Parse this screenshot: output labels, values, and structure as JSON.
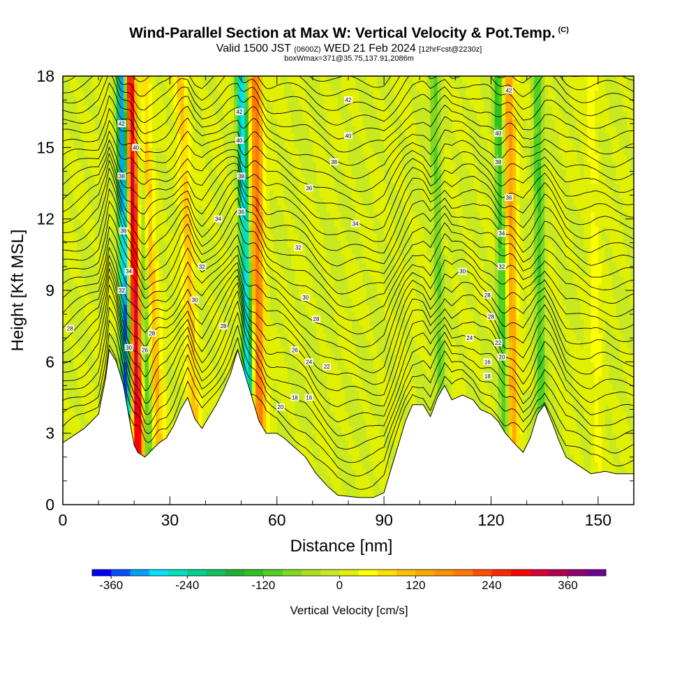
{
  "header": {
    "title": "Wind-Parallel Section at Max W: Vertical Velocity & Pot.Temp.",
    "copyright": "(C)",
    "valid_prefix": "Valid 1500 JST",
    "valid_utc": "(0600Z)",
    "valid_date": "WED 21 Feb 2024",
    "forecast_note": "[12hrFcst@2230z]",
    "box_info": "boxWmax=371@35.75,137.91,2086m"
  },
  "chart_data": {
    "type": "heatmap",
    "xlabel": "Distance [nm]",
    "ylabel": "Height [Kft MSL]",
    "xlim": [
      0,
      160
    ],
    "ylim": [
      0,
      18
    ],
    "x_ticks": [
      0,
      30,
      60,
      90,
      120,
      150
    ],
    "y_ticks": [
      0,
      3,
      6,
      9,
      12,
      15,
      18
    ],
    "colorbar": {
      "label": "Vertical Velocity [cm/s]",
      "tick_labels": [
        "-360",
        "-240",
        "-120",
        "0",
        "120",
        "240",
        "360"
      ],
      "tick_values": [
        -360,
        -240,
        -120,
        0,
        120,
        240,
        360
      ],
      "bins": [
        -390,
        -360,
        -330,
        -300,
        -270,
        -240,
        -210,
        -180,
        -150,
        -120,
        -90,
        -60,
        -30,
        0,
        30,
        60,
        90,
        120,
        150,
        180,
        210,
        240,
        270,
        300,
        330,
        360,
        390,
        420
      ],
      "colors": [
        "#0000ff",
        "#0050ff",
        "#00a0ff",
        "#00e0ff",
        "#00e0c0",
        "#00d090",
        "#10c060",
        "#20b030",
        "#30c020",
        "#50d020",
        "#80d820",
        "#a8e020",
        "#c8e820",
        "#e0f000",
        "#ffff00",
        "#ffe000",
        "#ffc000",
        "#ffa800",
        "#ff9000",
        "#ff7800",
        "#ff5000",
        "#ff2800",
        "#ff0000",
        "#d80030",
        "#b00050",
        "#900070",
        "#700090"
      ]
    },
    "terrain_height_kft": [
      {
        "x": 0,
        "y": 2.6
      },
      {
        "x": 3,
        "y": 2.9
      },
      {
        "x": 6,
        "y": 3.2
      },
      {
        "x": 8,
        "y": 3.5
      },
      {
        "x": 10,
        "y": 3.8
      },
      {
        "x": 12,
        "y": 5.3
      },
      {
        "x": 13,
        "y": 6.5
      },
      {
        "x": 15,
        "y": 6.0
      },
      {
        "x": 17,
        "y": 5.0
      },
      {
        "x": 19,
        "y": 3.3
      },
      {
        "x": 20,
        "y": 2.5
      },
      {
        "x": 21,
        "y": 2.2
      },
      {
        "x": 23,
        "y": 2.0
      },
      {
        "x": 25,
        "y": 2.3
      },
      {
        "x": 27,
        "y": 2.6
      },
      {
        "x": 29,
        "y": 2.8
      },
      {
        "x": 31,
        "y": 3.3
      },
      {
        "x": 33,
        "y": 4.0
      },
      {
        "x": 35,
        "y": 4.5
      },
      {
        "x": 37,
        "y": 3.6
      },
      {
        "x": 39,
        "y": 3.2
      },
      {
        "x": 41,
        "y": 3.7
      },
      {
        "x": 43,
        "y": 4.2
      },
      {
        "x": 45,
        "y": 4.8
      },
      {
        "x": 47,
        "y": 5.5
      },
      {
        "x": 49,
        "y": 6.5
      },
      {
        "x": 51,
        "y": 5.5
      },
      {
        "x": 53,
        "y": 4.5
      },
      {
        "x": 55,
        "y": 3.5
      },
      {
        "x": 57,
        "y": 3.0
      },
      {
        "x": 60,
        "y": 3.0
      },
      {
        "x": 62,
        "y": 2.8
      },
      {
        "x": 65,
        "y": 2.4
      },
      {
        "x": 68,
        "y": 2.0
      },
      {
        "x": 71,
        "y": 1.3
      },
      {
        "x": 74,
        "y": 0.8
      },
      {
        "x": 77,
        "y": 0.4
      },
      {
        "x": 83,
        "y": 0.3
      },
      {
        "x": 87,
        "y": 0.3
      },
      {
        "x": 90,
        "y": 0.5
      },
      {
        "x": 92,
        "y": 1.5
      },
      {
        "x": 94,
        "y": 2.5
      },
      {
        "x": 96,
        "y": 3.5
      },
      {
        "x": 98,
        "y": 4.2
      },
      {
        "x": 101,
        "y": 4.2
      },
      {
        "x": 103,
        "y": 3.7
      },
      {
        "x": 105,
        "y": 4.5
      },
      {
        "x": 107,
        "y": 5.0
      },
      {
        "x": 109,
        "y": 4.4
      },
      {
        "x": 112,
        "y": 4.6
      },
      {
        "x": 115,
        "y": 4.4
      },
      {
        "x": 117,
        "y": 4.0
      },
      {
        "x": 120,
        "y": 3.8
      },
      {
        "x": 122,
        "y": 3.5
      },
      {
        "x": 124,
        "y": 3.0
      },
      {
        "x": 127,
        "y": 2.5
      },
      {
        "x": 129,
        "y": 2.2
      },
      {
        "x": 131,
        "y": 2.8
      },
      {
        "x": 133,
        "y": 3.8
      },
      {
        "x": 135,
        "y": 4.2
      },
      {
        "x": 137,
        "y": 3.5
      },
      {
        "x": 139,
        "y": 2.7
      },
      {
        "x": 141,
        "y": 2.0
      },
      {
        "x": 145,
        "y": 1.6
      },
      {
        "x": 148,
        "y": 1.3
      },
      {
        "x": 152,
        "y": 1.4
      },
      {
        "x": 155,
        "y": 1.3
      },
      {
        "x": 160,
        "y": 1.3
      }
    ],
    "updraft_bands": [
      {
        "x_base": 21,
        "x_top": 19,
        "y_base": 2.5,
        "w_peak": 330
      },
      {
        "x_base": 27,
        "x_top": 22,
        "y_base": 2.2,
        "w_peak": 120
      },
      {
        "x_base": 37,
        "x_top": 33,
        "y_base": 3.5,
        "w_peak": 100
      },
      {
        "x_base": 55,
        "x_top": 54,
        "y_base": 3.5,
        "w_peak": 200
      },
      {
        "x_base": 126,
        "x_top": 125,
        "y_base": 3.0,
        "w_peak": 150
      },
      {
        "x_base": 150,
        "x_top": 148,
        "y_base": 1.5,
        "w_peak": 40
      }
    ],
    "downdraft_bands": [
      {
        "x_base": 18,
        "x_top": 16.5,
        "y_base": 3.0,
        "w_peak": -360
      },
      {
        "x_base": 24,
        "x_top": 21,
        "y_base": 2.3,
        "w_peak": -150
      },
      {
        "x_base": 52,
        "x_top": 50,
        "y_base": 5.0,
        "w_peak": -300
      },
      {
        "x_base": 106,
        "x_top": 104,
        "y_base": 4.5,
        "w_peak": -90
      },
      {
        "x_base": 124,
        "x_top": 122,
        "y_base": 3.5,
        "w_peak": -150
      },
      {
        "x_base": 134,
        "x_top": 133,
        "y_base": 4.0,
        "w_peak": -120
      }
    ],
    "theta_contour_labels": [
      {
        "text": "28",
        "x": 2,
        "y": 7.4
      },
      {
        "text": "42",
        "x": 16.5,
        "y": 16.0
      },
      {
        "text": "40",
        "x": 20.5,
        "y": 15.0
      },
      {
        "text": "38",
        "x": 16.5,
        "y": 13.8
      },
      {
        "text": "36",
        "x": 17,
        "y": 11.5
      },
      {
        "text": "34",
        "x": 18.5,
        "y": 9.8
      },
      {
        "text": "32",
        "x": 16.5,
        "y": 9.0
      },
      {
        "text": "30",
        "x": 18.5,
        "y": 6.6
      },
      {
        "text": "28",
        "x": 25,
        "y": 7.2
      },
      {
        "text": "26",
        "x": 23,
        "y": 6.5
      },
      {
        "text": "34",
        "x": 43.5,
        "y": 12.0
      },
      {
        "text": "32",
        "x": 39,
        "y": 10.0
      },
      {
        "text": "30",
        "x": 37,
        "y": 8.6
      },
      {
        "text": "28",
        "x": 45,
        "y": 7.5
      },
      {
        "text": "42",
        "x": 49.5,
        "y": 16.5
      },
      {
        "text": "40",
        "x": 49.5,
        "y": 15.3
      },
      {
        "text": "38",
        "x": 50,
        "y": 13.8
      },
      {
        "text": "36",
        "x": 50,
        "y": 12.3
      },
      {
        "text": "42",
        "x": 80,
        "y": 17.0
      },
      {
        "text": "40",
        "x": 80,
        "y": 15.5
      },
      {
        "text": "38",
        "x": 76,
        "y": 14.4
      },
      {
        "text": "36",
        "x": 69,
        "y": 13.3
      },
      {
        "text": "34",
        "x": 82,
        "y": 11.8
      },
      {
        "text": "32",
        "x": 66,
        "y": 10.8
      },
      {
        "text": "30",
        "x": 68,
        "y": 8.7
      },
      {
        "text": "28",
        "x": 71,
        "y": 7.8
      },
      {
        "text": "26",
        "x": 65,
        "y": 6.5
      },
      {
        "text": "24",
        "x": 69,
        "y": 6.0
      },
      {
        "text": "22",
        "x": 74,
        "y": 5.8
      },
      {
        "text": "20",
        "x": 61,
        "y": 4.1
      },
      {
        "text": "18",
        "x": 65,
        "y": 4.5
      },
      {
        "text": "16",
        "x": 69,
        "y": 4.5
      },
      {
        "text": "42",
        "x": 125,
        "y": 17.4
      },
      {
        "text": "40",
        "x": 122,
        "y": 15.6
      },
      {
        "text": "38",
        "x": 122,
        "y": 14.4
      },
      {
        "text": "36",
        "x": 125,
        "y": 12.9
      },
      {
        "text": "34",
        "x": 123,
        "y": 11.4
      },
      {
        "text": "32",
        "x": 123,
        "y": 10.0
      },
      {
        "text": "30",
        "x": 112,
        "y": 9.8
      },
      {
        "text": "28",
        "x": 119,
        "y": 8.8
      },
      {
        "text": "28",
        "x": 120,
        "y": 7.9
      },
      {
        "text": "24",
        "x": 114,
        "y": 7.0
      },
      {
        "text": "22",
        "x": 122,
        "y": 6.8
      },
      {
        "text": "20",
        "x": 123,
        "y": 6.2
      },
      {
        "text": "16",
        "x": 119,
        "y": 6.0
      },
      {
        "text": "18",
        "x": 119,
        "y": 5.4
      }
    ]
  }
}
